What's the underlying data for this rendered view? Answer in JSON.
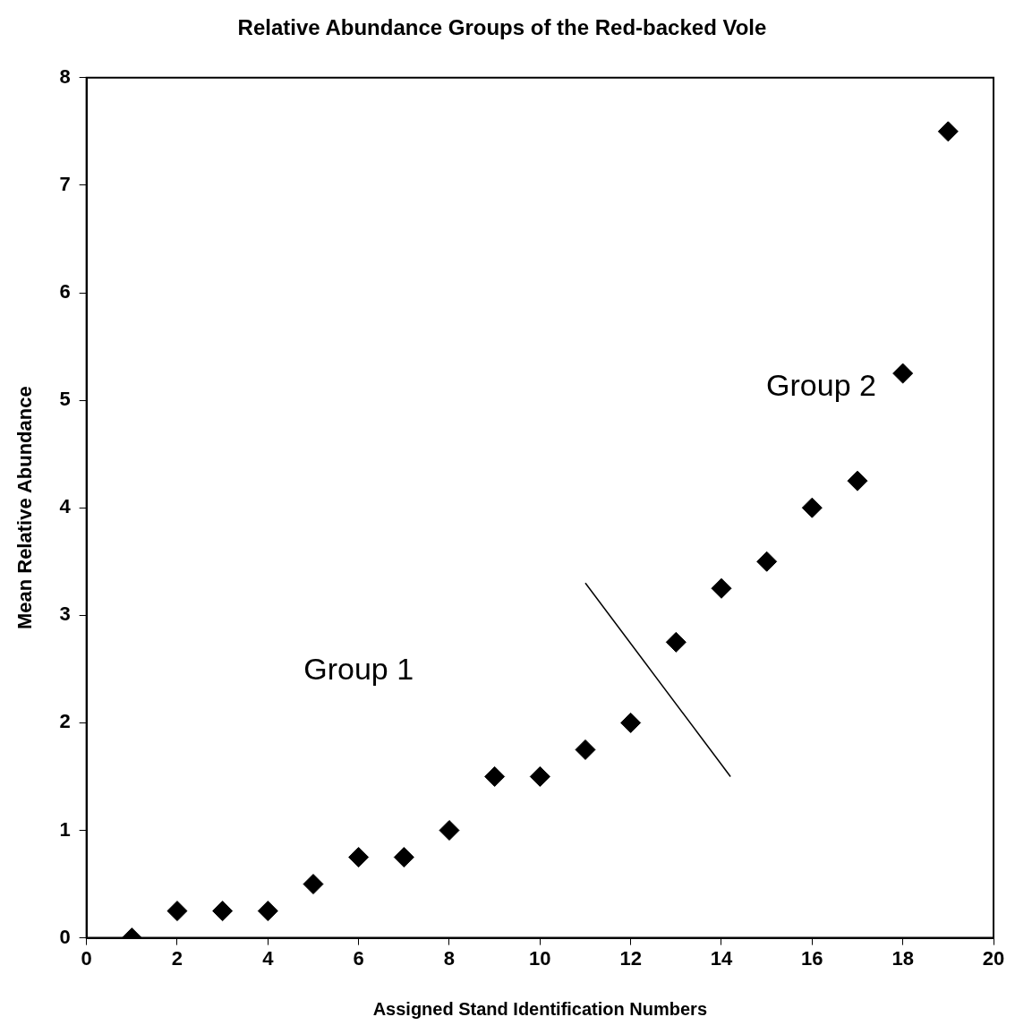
{
  "chart_data": {
    "type": "scatter",
    "title": "Relative Abundance Groups of the Red-backed Vole",
    "xlabel": "Assigned Stand Identification Numbers",
    "ylabel": "Mean Relative Abundance",
    "xlim": [
      0,
      20
    ],
    "xticks": [
      0,
      2,
      4,
      6,
      8,
      10,
      12,
      14,
      16,
      18,
      20
    ],
    "ylim": [
      0,
      8
    ],
    "yticks": [
      0,
      1,
      2,
      3,
      4,
      5,
      6,
      7,
      8
    ],
    "grid": false,
    "legend": false,
    "marker": "diamond",
    "series": [
      {
        "color": "#000000",
        "x": [
          1,
          2,
          3,
          4,
          5,
          6,
          7,
          8,
          9,
          10,
          11,
          12,
          13,
          14,
          15,
          16,
          17,
          18,
          19
        ],
        "values": [
          0,
          0.25,
          0.25,
          0.25,
          0.5,
          0.75,
          0.75,
          1,
          1.5,
          1.5,
          1.75,
          2,
          2.75,
          3.25,
          3.5,
          4,
          4.25,
          5.25,
          7.5
        ]
      },
      {
        "type": "line",
        "color": "#000000",
        "marker": "none",
        "x": [
          11,
          14.2
        ],
        "values": [
          3.3,
          1.5
        ]
      }
    ],
    "annotations": [
      "Group 1",
      "Group 2"
    ]
  }
}
